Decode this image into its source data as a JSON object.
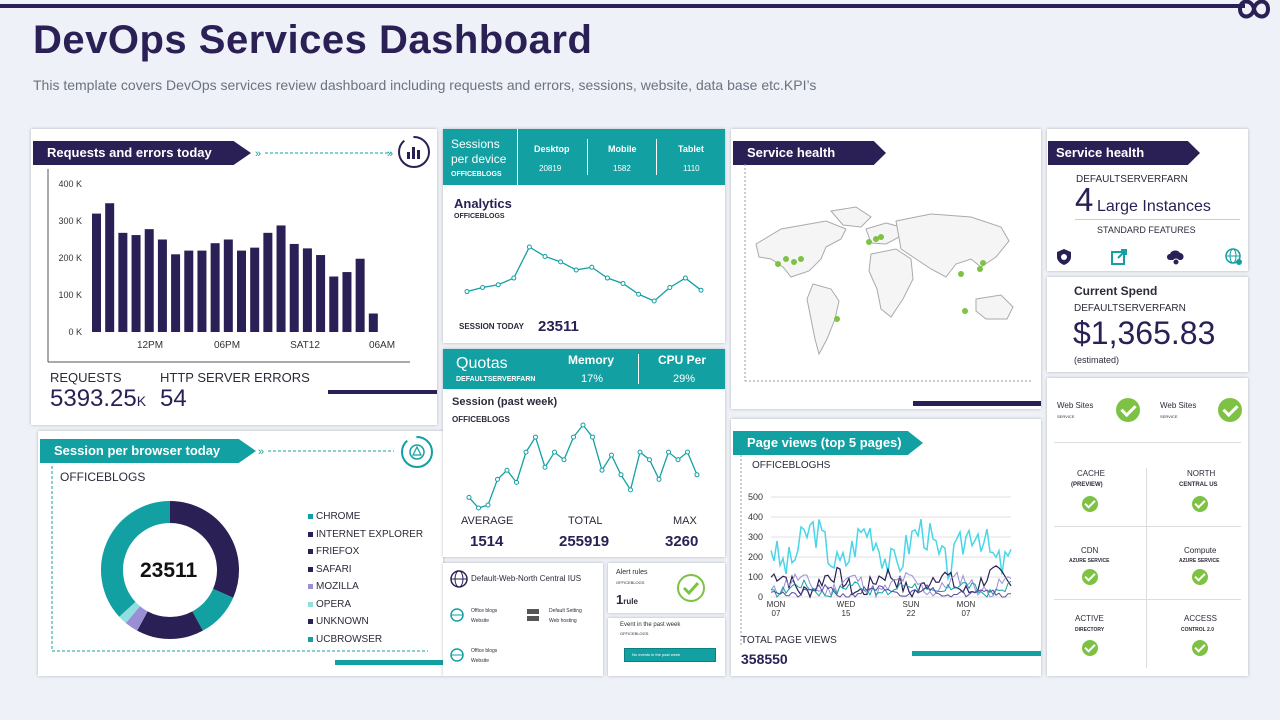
{
  "header": {
    "title": "DevOps Services Dashboard",
    "subtitle": "This template covers DevOps services review dashboard including requests and errors, sessions, website, data base etc.KPI’s"
  },
  "requests_panel": {
    "title": "Requests and errors today",
    "requests_label": "REQUESTS",
    "requests_value": "5393.25",
    "requests_unit": "K",
    "errors_label": "HTTP  SERVER ERRORS",
    "errors_value": "54"
  },
  "browser_panel": {
    "title": "Session per  browser today",
    "subtitle": "OFFICEBLOGS",
    "center_value": "23511",
    "legend": [
      "CHROME",
      "INTERNET EXPLORER",
      "FRIEFOX",
      "SAFARI",
      "MOZILLA",
      "OPERA",
      "UNKNOWN",
      "UCBROWSER"
    ]
  },
  "sessions_device": {
    "title_line1": "Sessions",
    "title_line2": "per device",
    "sub": "OFFICEBLOGS",
    "desktop_label": "Desktop",
    "desktop_value": "20819",
    "mobile_label": "Mobile",
    "mobile_value": "1582",
    "tablet_label": "Tablet",
    "tablet_value": "1110"
  },
  "analytics": {
    "title": "Analytics",
    "sub": "OFFICEBLOGS",
    "session_label": "SESSION  TODAY",
    "session_value": "23511"
  },
  "quotas": {
    "title": "Quotas",
    "sub": "DEFAULTSERVERFARN",
    "memory_label": "Memory",
    "memory_value": "17%",
    "cpu_label": "CPU Per",
    "cpu_value": "29%"
  },
  "session_week": {
    "title": "Session (past week)",
    "sub": "OFFICEBLOGS",
    "avg_label": "AVERAGE",
    "avg_value": "1514",
    "total_label": "TOTAL",
    "total_value": "255919",
    "max_label": "MAX",
    "max_value": "3260"
  },
  "website_panel": {
    "main_label": "Default-Web-North Central IUS",
    "item1_line1": "Office blogs",
    "item1_line2": "Website",
    "item2_line1": "Default Setting",
    "item2_line2": "Web hosting",
    "item3_line1": "Office blogs",
    "item3_line2": "Website"
  },
  "alert_panel": {
    "title": "Alert rules",
    "sub": "OFFICEBLOGS",
    "value": "1",
    "unit": "rule"
  },
  "event_panel": {
    "title": "Event in the past week",
    "sub": "OFFICEBLOGS",
    "bar_text": "No events in the past week"
  },
  "service_health_map": {
    "title": "Service health"
  },
  "page_views": {
    "title": "Page views (top 5 pages)",
    "sub": "OFFICEBLOGHS",
    "total_label": "TOTAL  PAGE VIEWS",
    "total_value": "358550"
  },
  "service_health_side": {
    "title": "Service health",
    "server": "DEFAULTSERVERFARN",
    "count": "4",
    "count_label": "Large Instances",
    "features": "STANDARD FEATURES"
  },
  "current_spend": {
    "title": "Current Spend",
    "server": "DEFAULTSERVERFARN",
    "value": "$1,365.83",
    "note": "(estimated)"
  },
  "status_grid": {
    "web1_line1": "Web Sites",
    "web1_line2": "SERVICE",
    "web2_line1": "Web Sites",
    "web2_line2": "SERVICE",
    "items": [
      {
        "name": "CACHE",
        "sub": "(PREVIEW)"
      },
      {
        "name": "NORTH",
        "sub": "CENTRAL US"
      },
      {
        "name": "CDN",
        "sub": "AZURE SERVICE"
      },
      {
        "name": "Compute",
        "sub": "AZURE SERVICE"
      },
      {
        "name": "ACTIVE",
        "sub": "DIRECTORY"
      },
      {
        "name": "ACCESS",
        "sub": "CONTROL 2.0"
      }
    ]
  },
  "chart_data": [
    {
      "type": "bar",
      "title": "Requests and errors today",
      "values": [
        320,
        348,
        268,
        262,
        278,
        250,
        210,
        220,
        220,
        240,
        250,
        220,
        228,
        268,
        288,
        238,
        226,
        208,
        150,
        162,
        198,
        50
      ],
      "ylim": [
        0,
        400
      ],
      "yticks": [
        "400 K",
        "300 K",
        "200 K",
        "100 K",
        "0 K"
      ],
      "xticks": [
        "12PM",
        "06PM",
        "SAT12",
        "06AM"
      ]
    },
    {
      "type": "pie",
      "title": "Session per browser today",
      "categories": [
        "CHROME",
        "INTERNET EXPLORER",
        "FRIEFOX",
        "SAFARI",
        "MOZILLA",
        "OPERA",
        "UNKNOWN",
        "UCBROWSER"
      ],
      "values": [
        30,
        10,
        15,
        5,
        3,
        2,
        35,
        0
      ]
    },
    {
      "type": "line",
      "title": "Analytics",
      "values": [
        2,
        5,
        7,
        12,
        35,
        28,
        24,
        18,
        20,
        12,
        8,
        0,
        -5,
        5,
        12,
        3
      ]
    },
    {
      "type": "line",
      "title": "Session (past week)",
      "values": [
        10,
        3,
        5,
        22,
        28,
        20,
        40,
        50,
        30,
        40,
        35,
        50,
        58,
        50,
        28,
        38,
        25,
        15,
        40,
        35,
        22,
        40,
        35,
        40,
        25
      ]
    },
    {
      "type": "line",
      "title": "Page views (top 5 pages)",
      "x": [
        "MON 07",
        "WED 15",
        "SUN 22",
        "MON 07"
      ],
      "yticks": [
        500,
        400,
        300,
        200,
        100,
        0
      ],
      "ylim": [
        0,
        500
      ]
    }
  ]
}
